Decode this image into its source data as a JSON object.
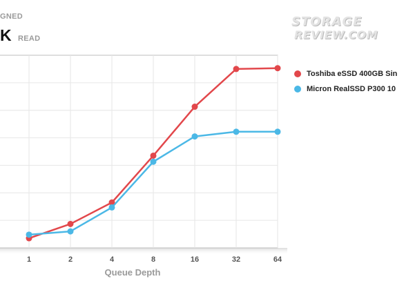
{
  "header": {
    "subtitle": "GNED",
    "title": "K",
    "title_sub": "READ"
  },
  "logo": {
    "line1": "STORAGE",
    "line2": "REVIEW.COM"
  },
  "colors": {
    "red": "#e2474b",
    "blue": "#4bb8e6",
    "grid": "#e6e6e6"
  },
  "chart_data": {
    "type": "line",
    "categories": [
      "1",
      "2",
      "4",
      "8",
      "16",
      "32",
      "64"
    ],
    "xlabel": "Queue Depth",
    "ylabel": "",
    "ylim": [
      0,
      7
    ],
    "grid": true,
    "legend_position": "right",
    "series": [
      {
        "name": "Toshiba eSSD 400GB Sin",
        "color": "#e2474b",
        "values": [
          0.35,
          0.87,
          1.65,
          3.35,
          5.13,
          6.5,
          6.53
        ]
      },
      {
        "name": "Micron RealSSD P300 10",
        "color": "#4bb8e6",
        "values": [
          0.48,
          0.6,
          1.47,
          3.13,
          4.05,
          4.22,
          4.22
        ]
      }
    ]
  }
}
